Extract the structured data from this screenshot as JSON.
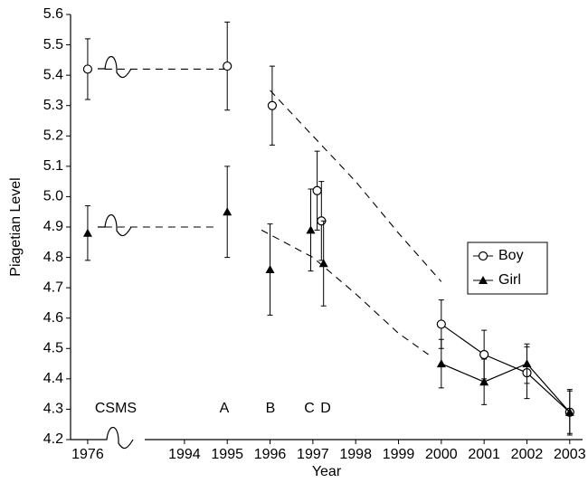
{
  "chart_data": {
    "type": "errorbar",
    "xlabel": "Year",
    "ylabel": "Piagetian Level",
    "xlim": [
      1975.6,
      2003.3
    ],
    "xbreak": [
      1978.26,
      1994
    ],
    "xticks": [
      1976,
      1994,
      1995,
      1996,
      1997,
      1998,
      1999,
      2000,
      2001,
      2002,
      2003
    ],
    "ylim": [
      4.2,
      5.6
    ],
    "yticks": [
      4.2,
      4.3,
      4.4,
      4.5,
      4.6,
      4.7,
      4.8,
      4.9,
      {
        "value": 5,
        "label": "5.0"
      },
      5.1,
      5.2,
      5.3,
      5.4,
      5.5,
      5.6
    ],
    "legend": "right",
    "annotations": [
      "CSMS",
      "A",
      "B",
      "C",
      "D"
    ],
    "series": [
      {
        "name": "Boy",
        "color": "#000000",
        "marker": "open-circle",
        "line_from_x": 2000,
        "x": [
          1976,
          1995,
          1996.05,
          1997.1,
          1997.2,
          2000,
          2001,
          2002,
          2003
        ],
        "values": [
          5.42,
          5.43,
          5.3,
          5.02,
          4.92,
          4.58,
          4.48,
          4.42,
          4.29
        ],
        "errors": [
          0.1,
          0.145,
          0.13,
          0.13,
          0.13,
          0.08,
          0.08,
          0.085,
          0.075
        ],
        "trend": {
          "x": [
            1976.4,
            1995,
            1995,
            1996,
            1997,
            1998,
            1999,
            2000
          ],
          "y": [
            5.42,
            5.42,
            null,
            5.35,
            5.2,
            5.05,
            4.88,
            4.72
          ]
        }
      },
      {
        "name": "Girl",
        "color": "#000000",
        "marker": "filled-triangle",
        "line_from_x": 2000,
        "x": [
          1976,
          1995,
          1996,
          1996.95,
          1997.25,
          2000,
          2001,
          2002,
          2003
        ],
        "values": [
          4.88,
          4.95,
          4.76,
          4.89,
          4.78,
          4.45,
          4.39,
          4.45,
          4.29
        ],
        "errors": [
          0.09,
          0.15,
          0.15,
          0.135,
          0.14,
          0.08,
          0.075,
          0.065,
          0.07
        ],
        "trend": {
          "x": [
            1976.4,
            1994.8,
            1994.8,
            1995.8,
            1997,
            1998,
            1999,
            1999.7
          ],
          "y": [
            4.9,
            4.9,
            null,
            4.89,
            4.8,
            4.68,
            4.55,
            4.48
          ]
        }
      }
    ]
  }
}
